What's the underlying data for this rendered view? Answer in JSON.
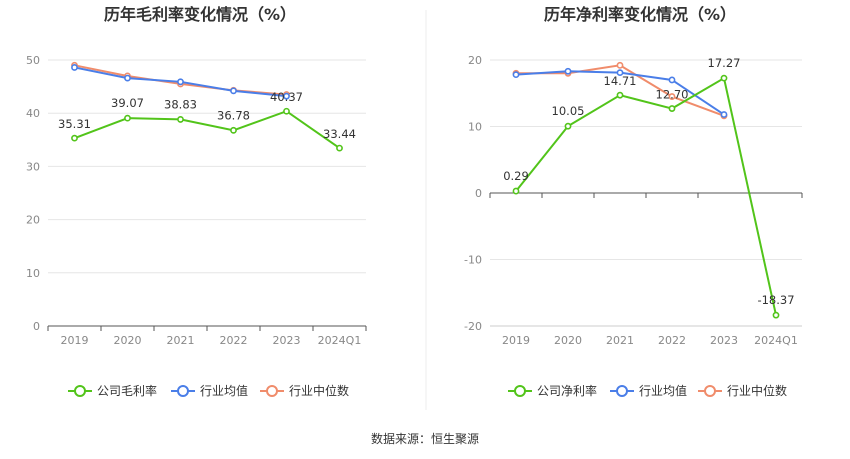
{
  "source_text": "数据来源：恒生聚源",
  "chart_data": [
    {
      "type": "line",
      "title": "历年毛利率变化情况（%）",
      "categories": [
        "2019",
        "2020",
        "2021",
        "2022",
        "2023",
        "2024Q1"
      ],
      "ylim": [
        0,
        50
      ],
      "yticks": [
        0,
        10,
        20,
        30,
        40,
        50
      ],
      "grid": true,
      "legend_position": "bottom",
      "series": [
        {
          "name": "公司毛利率",
          "color": "#52c41a",
          "values": [
            35.31,
            39.07,
            38.83,
            36.78,
            40.37,
            33.44
          ],
          "labels": [
            "35.31",
            "39.07",
            "38.83",
            "36.78",
            "40.37",
            "33.44"
          ]
        },
        {
          "name": "行业均值",
          "color": "#4a7ee8",
          "values": [
            48.6,
            46.6,
            45.9,
            44.2,
            43.2,
            null
          ]
        },
        {
          "name": "行业中位数",
          "color": "#f08c6b",
          "values": [
            49.0,
            47.0,
            45.5,
            44.3,
            43.5,
            null
          ]
        }
      ]
    },
    {
      "type": "line",
      "title": "历年净利率变化情况（%）",
      "categories": [
        "2019",
        "2020",
        "2021",
        "2022",
        "2023",
        "2024Q1"
      ],
      "ylim": [
        -20,
        20
      ],
      "yticks": [
        -20,
        -10,
        0,
        10,
        20
      ],
      "grid": true,
      "legend_position": "bottom",
      "series": [
        {
          "name": "公司净利率",
          "color": "#52c41a",
          "values": [
            0.29,
            10.05,
            14.71,
            12.7,
            17.27,
            -18.37
          ],
          "labels": [
            "0.29",
            "10.05",
            "14.71",
            "12.70",
            "17.27",
            "-18.37"
          ]
        },
        {
          "name": "行业均值",
          "color": "#4a7ee8",
          "values": [
            17.8,
            18.3,
            18.1,
            17.0,
            11.8,
            null
          ]
        },
        {
          "name": "行业中位数",
          "color": "#f08c6b",
          "values": [
            18.0,
            18.0,
            19.2,
            14.5,
            11.6,
            null
          ]
        }
      ]
    }
  ]
}
